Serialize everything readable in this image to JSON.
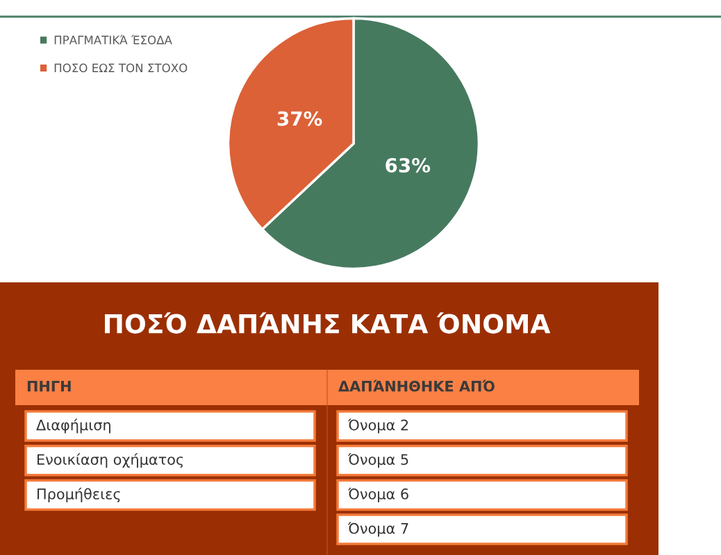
{
  "chart_data": [
    {
      "type": "pie",
      "categories": [
        "ΠΡΑΓΜΑΤΙΚΆ ΈΣΟΔΑ",
        "ΠΟΣΟ ΕΩΣ ΤΟΝ ΣΤΟΧΟ"
      ],
      "values": [
        63,
        37
      ],
      "colors": [
        "#467a5f",
        "#dc6137"
      ],
      "value_labels": [
        "63%",
        "37%"
      ],
      "legend": "top left"
    },
    {
      "type": "other",
      "title": "ΠΟΣΌ ΔΑΠΆΝΗΣ ΚΑΤΑ ΌΝΟΜΑ",
      "categories": [
        "ΠΗΓΗ",
        "ΔΑΠΆΝΗΘΗΚΕ ΑΠΌ"
      ],
      "cell_labels": [
        [
          "Διαφήμιση",
          "Όνομα 2"
        ],
        [
          "Ενοικίαση οχήματος",
          "Όνομα 5"
        ],
        [
          "Προμήθειες",
          "Όνομα 6"
        ],
        [
          null,
          "Όνομα 7"
        ]
      ]
    }
  ]
}
